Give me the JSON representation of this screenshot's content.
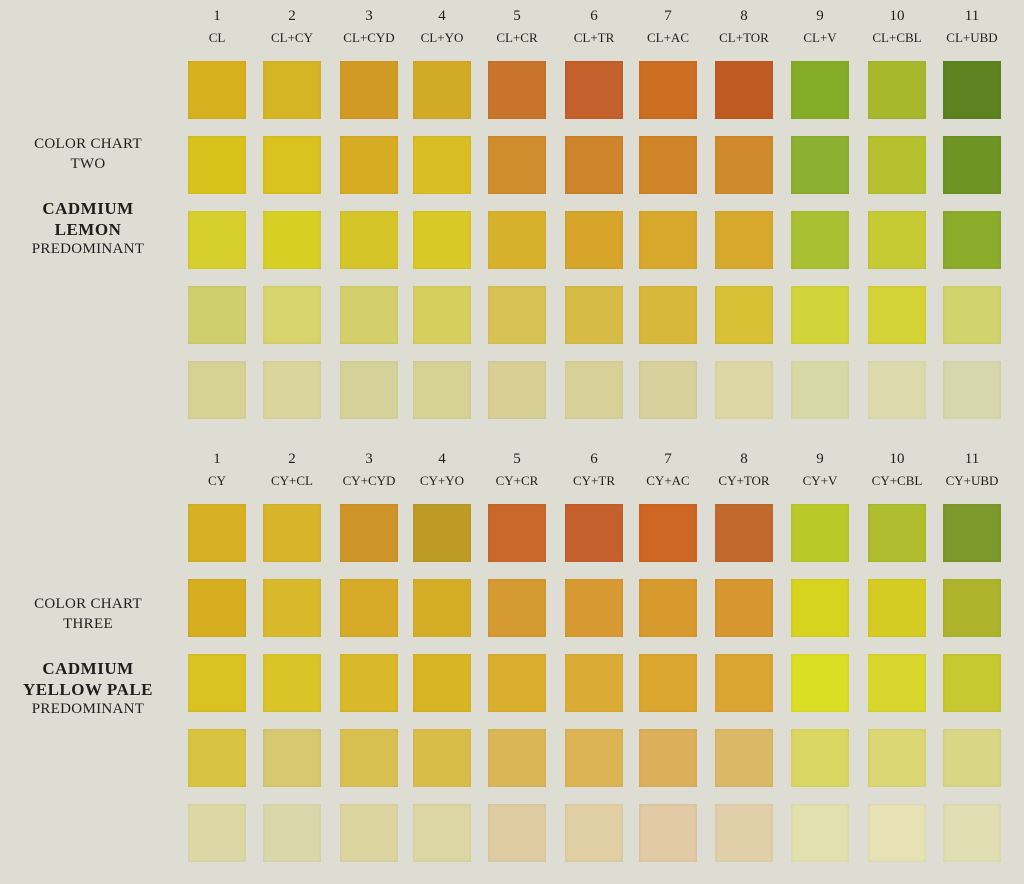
{
  "charts": [
    {
      "caption": [
        "COLOR CHART",
        "TWO"
      ],
      "title": [
        "CADMIUM",
        "LEMON"
      ],
      "subtitle": "PREDOMINANT",
      "columns": [
        {
          "number": "1",
          "label": "CL",
          "swatches": [
            "#d6b01e",
            "#d8c21c",
            "#d7cf2b",
            "#cfcf6e",
            "#d6d294"
          ]
        },
        {
          "number": "2",
          "label": "CL+CY",
          "swatches": [
            "#d6b525",
            "#dac21f",
            "#d8cf25",
            "#d7d36d",
            "#dad59a"
          ]
        },
        {
          "number": "3",
          "label": "CL+CYD",
          "swatches": [
            "#d09a24",
            "#d6ac23",
            "#d6c528",
            "#d3cf6a",
            "#d4d298"
          ]
        },
        {
          "number": "4",
          "label": "CL+YO",
          "swatches": [
            "#d2ab26",
            "#d8be22",
            "#d9c926",
            "#d6cf5e",
            "#d5d294"
          ]
        },
        {
          "number": "5",
          "label": "CL+CR",
          "swatches": [
            "#c9742b",
            "#d08d2c",
            "#d8b12c",
            "#d7c253",
            "#d7cf94"
          ]
        },
        {
          "number": "6",
          "label": "CL+TR",
          "swatches": [
            "#c3602b",
            "#cd842a",
            "#d6a52a",
            "#d6bc47",
            "#d8d197"
          ]
        },
        {
          "number": "7",
          "label": "CL+AC",
          "swatches": [
            "#cc6e22",
            "#d08428",
            "#d7a82b",
            "#d7b83a",
            "#d9d19d"
          ]
        },
        {
          "number": "8",
          "label": "CL+TOR",
          "swatches": [
            "#bf5b22",
            "#d08a2c",
            "#d8a82d",
            "#d8c134",
            "#dcd6a4"
          ]
        },
        {
          "number": "9",
          "label": "CL+V",
          "swatches": [
            "#86ad28",
            "#8cb032",
            "#a9c033",
            "#d1d53a",
            "#d8d8a7"
          ]
        },
        {
          "number": "10",
          "label": "CL+CBL",
          "swatches": [
            "#a7b82d",
            "#b6c12f",
            "#c6cb34",
            "#d4d337",
            "#dcdaad"
          ]
        },
        {
          "number": "11",
          "label": "CL+UBD",
          "swatches": [
            "#5e8220",
            "#6e9423",
            "#8aac2a",
            "#d1d36c",
            "#d8d6ac"
          ]
        }
      ]
    },
    {
      "caption": [
        "COLOR CHART",
        "THREE"
      ],
      "title": [
        "CADMIUM",
        "YELLOW PALE"
      ],
      "subtitle": "PREDOMINANT",
      "columns": [
        {
          "number": "1",
          "label": "CY",
          "swatches": [
            "#d7b123",
            "#d7ae1f",
            "#d9c222",
            "#d8c440",
            "#dbd8a5"
          ]
        },
        {
          "number": "2",
          "label": "CY+CL",
          "swatches": [
            "#d8b42a",
            "#d8b929",
            "#d9c528",
            "#d7c970",
            "#dad8ab"
          ]
        },
        {
          "number": "3",
          "label": "CY+CYD",
          "swatches": [
            "#cd9428",
            "#d7ab28",
            "#d9b82a",
            "#d8c050",
            "#dcd5a0"
          ]
        },
        {
          "number": "4",
          "label": "CY+YO",
          "swatches": [
            "#bd9b25",
            "#d6ae26",
            "#d7b524",
            "#d8be48",
            "#dcd6a4"
          ]
        },
        {
          "number": "5",
          "label": "CY+CR",
          "swatches": [
            "#c8692b",
            "#d59a31",
            "#daae2e",
            "#dab657",
            "#decba0"
          ]
        },
        {
          "number": "6",
          "label": "CY+TR",
          "swatches": [
            "#c4602b",
            "#d79a32",
            "#dbac35",
            "#dcb455",
            "#e0cfa3"
          ]
        },
        {
          "number": "7",
          "label": "CY+AC",
          "swatches": [
            "#cd6723",
            "#d89a2d",
            "#dba72e",
            "#dcb05a",
            "#e2caa4"
          ]
        },
        {
          "number": "8",
          "label": "CY+TOR",
          "swatches": [
            "#c16a2c",
            "#d7962f",
            "#dba534",
            "#dbb866",
            "#e1cfaa"
          ]
        },
        {
          "number": "9",
          "label": "CY+V",
          "swatches": [
            "#b9ca28",
            "#d6d41e",
            "#dade25",
            "#dad762",
            "#e2e0ae"
          ]
        },
        {
          "number": "10",
          "label": "CY+CBL",
          "swatches": [
            "#aebc2e",
            "#d4cc22",
            "#d9d62d",
            "#dbd774",
            "#e6e2b6"
          ]
        },
        {
          "number": "11",
          "label": "CY+UBD",
          "swatches": [
            "#7d982b",
            "#adb42b",
            "#c8c831",
            "#d9d686",
            "#e1deb3"
          ]
        }
      ]
    }
  ]
}
